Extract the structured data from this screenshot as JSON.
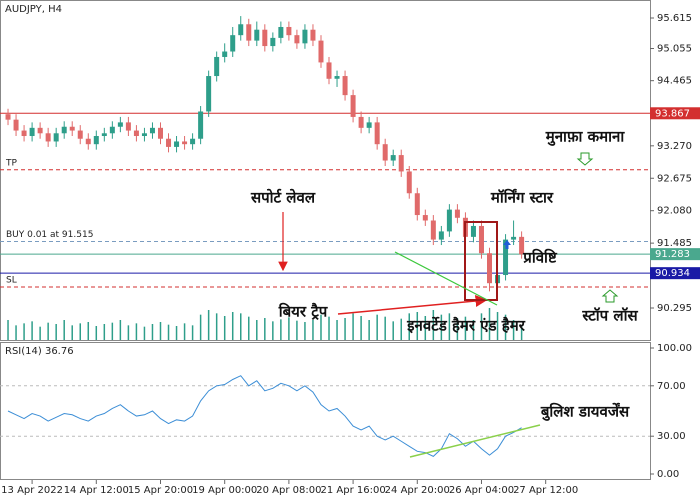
{
  "chart_data": {
    "type": "candlestick",
    "title": "AUDJPY, H4",
    "xlim": [
      -1,
      80
    ],
    "xticks": [
      {
        "value": 3,
        "label": "13 Apr 2022"
      },
      {
        "value": 11,
        "label": "14 Apr 12:00"
      },
      {
        "value": 19,
        "label": "15 Apr 20:00"
      },
      {
        "value": 27,
        "label": "19 Apr 00:00"
      },
      {
        "value": 35,
        "label": "20 Apr 08:00"
      },
      {
        "value": 43,
        "label": "21 Apr 16:00"
      },
      {
        "value": 51,
        "label": "24 Apr 20:00"
      },
      {
        "value": 59,
        "label": "26 Apr 04:00"
      },
      {
        "value": 67,
        "label": "27 Apr 12:00"
      }
    ],
    "ylim": [
      89.708,
      95.945
    ],
    "yticks": [
      95.615,
      95.055,
      94.465,
      {
        "value": 93.27,
        "label": "93.270"
      },
      92.675,
      {
        "value": 92.08,
        "label": "92.080"
      },
      91.485,
      90.295
    ],
    "up_color": "#2e9e8a",
    "down_color": "#e06a6a",
    "open": [
      93.85,
      93.75,
      93.55,
      93.45,
      93.6,
      93.5,
      93.35,
      93.5,
      93.62,
      93.55,
      93.4,
      93.3,
      93.45,
      93.5,
      93.62,
      93.7,
      93.55,
      93.45,
      93.5,
      93.6,
      93.4,
      93.25,
      93.35,
      93.3,
      93.4,
      93.9,
      94.55,
      94.9,
      95.0,
      95.3,
      95.5,
      95.2,
      95.4,
      95.1,
      95.25,
      95.45,
      95.3,
      95.15,
      95.4,
      95.2,
      94.8,
      94.5,
      94.55,
      94.2,
      93.8,
      93.6,
      93.7,
      93.3,
      93.0,
      93.1,
      92.8,
      92.4,
      92.0,
      91.9,
      91.55,
      91.7,
      92.1,
      91.95,
      91.6,
      91.8,
      91.3,
      90.75,
      90.9,
      91.55,
      91.6
    ],
    "high": [
      93.95,
      93.85,
      93.65,
      93.7,
      93.7,
      93.6,
      93.6,
      93.72,
      93.72,
      93.65,
      93.5,
      93.55,
      93.6,
      93.72,
      93.8,
      93.8,
      93.65,
      93.6,
      93.7,
      93.7,
      93.5,
      93.45,
      93.45,
      93.5,
      94.0,
      94.65,
      95.0,
      95.15,
      95.45,
      95.65,
      95.6,
      95.55,
      95.5,
      95.35,
      95.55,
      95.55,
      95.4,
      95.5,
      95.5,
      95.3,
      94.9,
      94.65,
      94.65,
      94.3,
      93.9,
      93.8,
      93.8,
      93.4,
      93.2,
      93.2,
      92.9,
      92.5,
      92.1,
      92.0,
      91.8,
      92.2,
      92.2,
      92.05,
      91.9,
      91.9,
      91.4,
      91.45,
      91.65,
      91.9,
      91.7
    ],
    "low": [
      93.65,
      93.45,
      93.35,
      93.35,
      93.4,
      93.25,
      93.25,
      93.4,
      93.45,
      93.3,
      93.2,
      93.2,
      93.35,
      93.4,
      93.52,
      93.45,
      93.35,
      93.35,
      93.4,
      93.3,
      93.15,
      93.15,
      93.2,
      93.2,
      93.3,
      93.8,
      94.45,
      94.8,
      94.9,
      95.2,
      95.1,
      95.1,
      95.0,
      95.0,
      95.15,
      95.2,
      95.05,
      95.05,
      95.1,
      94.7,
      94.4,
      94.35,
      94.1,
      93.7,
      93.5,
      93.5,
      93.2,
      92.9,
      92.9,
      92.7,
      92.3,
      91.9,
      91.8,
      91.45,
      91.45,
      91.6,
      91.85,
      91.5,
      91.5,
      91.2,
      90.6,
      90.7,
      90.8,
      91.45,
      91.2
    ],
    "close": [
      93.75,
      93.55,
      93.45,
      93.6,
      93.5,
      93.35,
      93.5,
      93.62,
      93.55,
      93.4,
      93.3,
      93.45,
      93.5,
      93.62,
      93.7,
      93.55,
      93.45,
      93.5,
      93.6,
      93.4,
      93.25,
      93.35,
      93.3,
      93.4,
      93.9,
      94.55,
      94.9,
      95.0,
      95.3,
      95.5,
      95.2,
      95.4,
      95.1,
      95.25,
      95.45,
      95.3,
      95.15,
      95.4,
      95.2,
      94.8,
      94.5,
      94.55,
      94.2,
      93.8,
      93.6,
      93.7,
      93.3,
      93.0,
      93.1,
      92.8,
      92.4,
      92.0,
      91.9,
      91.55,
      91.7,
      92.1,
      91.95,
      91.6,
      91.8,
      91.3,
      90.75,
      90.9,
      91.55,
      91.6,
      91.28
    ],
    "volume": [
      30,
      22,
      25,
      28,
      20,
      26,
      24,
      30,
      22,
      25,
      27,
      21,
      24,
      26,
      30,
      22,
      25,
      20,
      24,
      27,
      23,
      21,
      25,
      22,
      38,
      45,
      40,
      36,
      42,
      40,
      35,
      30,
      33,
      28,
      31,
      34,
      29,
      27,
      30,
      38,
      35,
      30,
      33,
      40,
      36,
      30,
      38,
      35,
      28,
      32,
      40,
      42,
      36,
      45,
      38,
      40,
      33,
      35,
      30,
      40,
      48,
      42,
      38,
      30,
      20
    ],
    "volume_color": "#2e9e8a",
    "levels": [
      {
        "value": 93.867,
        "color": "#d32f2f",
        "dashed": false,
        "tag": true
      },
      {
        "name": "TP",
        "value": 92.83,
        "color": "#d32f2f",
        "dashed": true,
        "tag": false
      },
      {
        "name": "BUY 0.01 at 91.515",
        "value": 91.515,
        "color": "#7a9cc0",
        "dashed": true,
        "tag": false
      },
      {
        "value": 91.283,
        "color": "#4aa88e",
        "dashed": false,
        "tag": true
      },
      {
        "value": 90.934,
        "color": "#1a1aa6",
        "dashed": false,
        "tag": true
      },
      {
        "name": "SL",
        "value": 90.68,
        "color": "#d32f2f",
        "dashed": true,
        "tag": false
      }
    ],
    "rsi": {
      "title": "RSI(14) 36.76",
      "color": "#3c8ed6",
      "ylim": [
        0,
        100
      ],
      "yticks": [
        {
          "value": 100,
          "label": "100.00"
        },
        {
          "value": 70,
          "label": "70.00"
        },
        {
          "value": 30,
          "label": "30.00"
        },
        {
          "value": 0,
          "label": "0.00"
        }
      ],
      "values": [
        50,
        47,
        44,
        48,
        46,
        42,
        45,
        48,
        47,
        44,
        42,
        46,
        48,
        52,
        55,
        50,
        46,
        47,
        50,
        44,
        40,
        43,
        42,
        46,
        58,
        66,
        70,
        71,
        75,
        78,
        70,
        74,
        66,
        68,
        72,
        70,
        66,
        70,
        65,
        55,
        50,
        52,
        46,
        38,
        35,
        38,
        30,
        27,
        30,
        26,
        22,
        18,
        17,
        14,
        20,
        32,
        28,
        22,
        26,
        20,
        15,
        20,
        30,
        33,
        36.76
      ]
    },
    "annotations": [
      "मुनाफ़ा कमाना",
      "सपोर्ट लेवल",
      "मॉर्निंग स्टार",
      "प्रविष्टि",
      "बियर ट्रैप",
      "इनवर्टेड हैमर एंड हैमर",
      "स्टॉप लॉस",
      "बुलिश डायवर्जेंस"
    ]
  }
}
